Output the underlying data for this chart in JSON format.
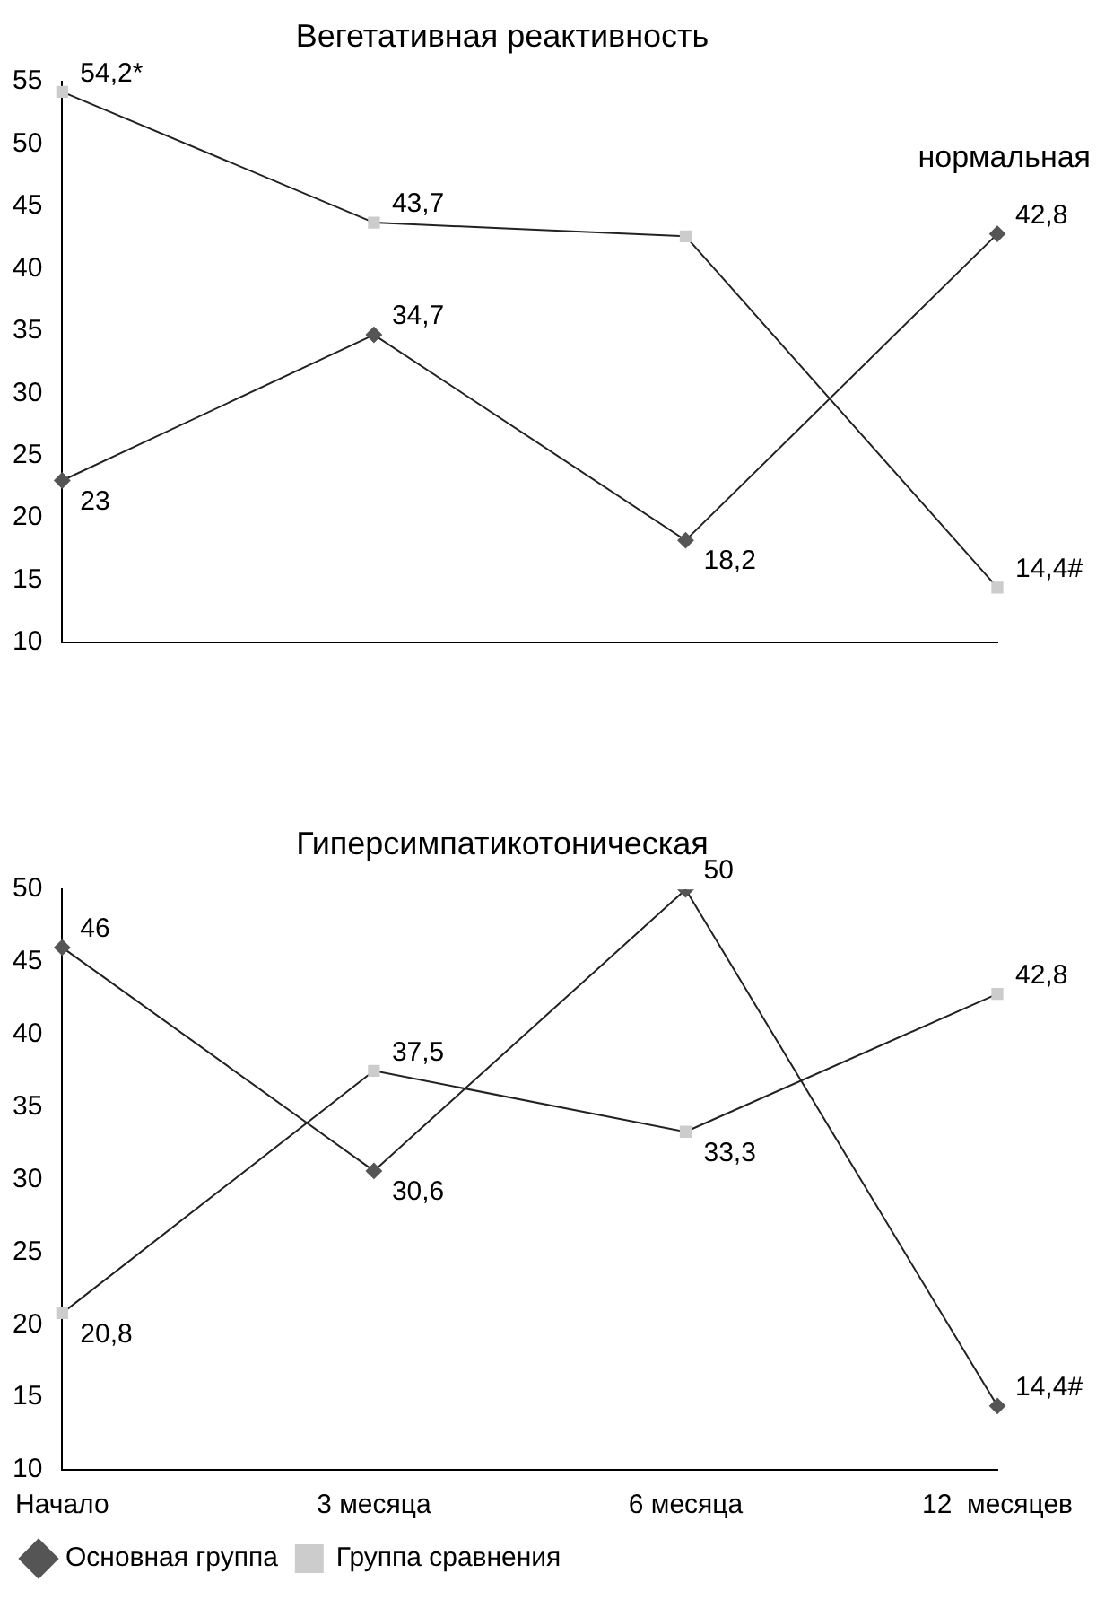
{
  "chart_data": [
    {
      "type": "line",
      "title": "Вегетативная реактивность",
      "annotations": [
        "нормальная"
      ],
      "categories": [
        null,
        null,
        null,
        null
      ],
      "tick_labels": "y",
      "ylim": [
        10,
        55
      ],
      "yticks": [
        10,
        15,
        20,
        25,
        30,
        35,
        40,
        45,
        50,
        55
      ],
      "grid": false,
      "legend": false,
      "series": [
        {
          "color": "#555555",
          "marker": "diamond",
          "values": [
            23,
            34.7,
            18.2,
            42.8
          ],
          "value_labels": [
            "23",
            "34,7",
            "18,2",
            "42,8"
          ]
        },
        {
          "color": "#cccccc",
          "marker": "square",
          "values": [
            54.2,
            43.7,
            42.6,
            14.4
          ],
          "value_labels": [
            "54,2*",
            "43,7",
            null,
            "14,4#"
          ]
        }
      ]
    },
    {
      "type": "line",
      "title": "Гиперсимпатикотоническая",
      "categories": [
        "Начало",
        "3 месяца",
        "6 месяца",
        "12  месяцев"
      ],
      "ylim": [
        10,
        50
      ],
      "yticks": [
        10,
        15,
        20,
        25,
        30,
        35,
        40,
        45,
        50
      ],
      "grid": false,
      "legend": "bottom left",
      "series": [
        {
          "name": "Основная группа",
          "color": "#555555",
          "marker": "diamond",
          "values": [
            46,
            30.6,
            50,
            14.4
          ],
          "value_labels": [
            "46",
            "30,6",
            "50",
            "14,4#"
          ]
        },
        {
          "name": "Группа сравнения",
          "color": "#cccccc",
          "marker": "square",
          "values": [
            20.8,
            37.5,
            33.3,
            42.8
          ],
          "value_labels": [
            "20,8",
            "37,5",
            "33,3",
            "42,8"
          ]
        }
      ]
    }
  ]
}
